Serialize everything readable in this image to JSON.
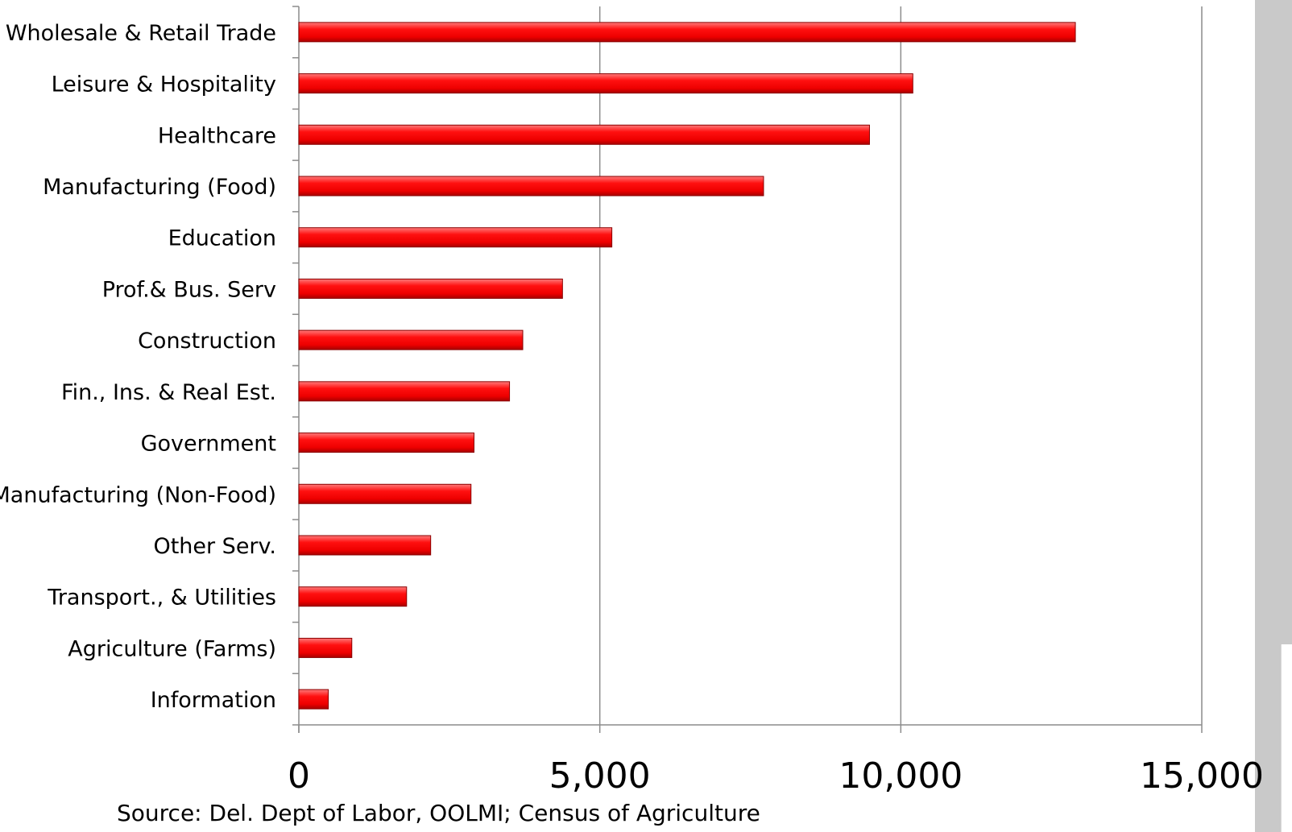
{
  "chart_data": {
    "type": "bar",
    "orientation": "horizontal",
    "categories": [
      "Wholesale & Retail Trade",
      "Leisure & Hospitality",
      "Healthcare",
      "Manufacturing (Food)",
      "Education",
      "Prof.& Bus. Serv",
      "Construction",
      "Fin., Ins. & Real Est.",
      "Government",
      "Manufacturing (Non-Food)",
      "Other Serv.",
      "Transport., & Utilities",
      "Agriculture (Farms)",
      "Information"
    ],
    "values": [
      12900,
      10200,
      9480,
      7720,
      5200,
      4380,
      3720,
      3500,
      2910,
      2860,
      2190,
      1790,
      880,
      490
    ],
    "xlim": [
      0,
      15000
    ],
    "x_ticks": [
      0,
      5000,
      10000,
      15000
    ],
    "x_tick_labels": [
      "0",
      "5,000",
      "10,000",
      "15,000"
    ],
    "gridlines": "vertical",
    "bar_color": "#ff0000",
    "title": "",
    "xlabel": "",
    "ylabel": ""
  },
  "source_note": "Source: Del. Dept of Labor, OOLMI; Census of Agriculture"
}
